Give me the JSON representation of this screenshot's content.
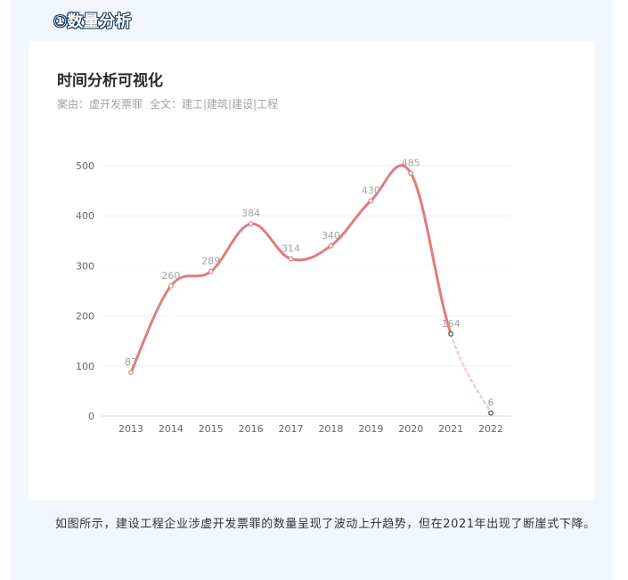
{
  "section_heading": "①数量分析",
  "card": {
    "title": "时间分析可视化",
    "subtitle_case": "案由：虚开发票罪",
    "subtitle_fulltext": "全文：建工|建筑|建设|工程"
  },
  "caption": "如图所示，建设工程企业涉虚开发票罪的数量呈现了波动上升趋势，但在2021年出现了断崖式下降。",
  "colors": {
    "line": "#e07c7e",
    "line_faded": "#f3cfd0",
    "panel_bg": "#f1f7fd",
    "axis_text": "#666666",
    "label_text": "#a3a3a3"
  },
  "chart_data": {
    "type": "line",
    "title": "时间分析可视化",
    "xlabel": "",
    "ylabel": "",
    "categories": [
      "2013",
      "2014",
      "2015",
      "2016",
      "2017",
      "2018",
      "2019",
      "2020",
      "2021",
      "2022"
    ],
    "series": [
      {
        "values": [
          87,
          260,
          289,
          384,
          314,
          340,
          430,
          485,
          164,
          6
        ]
      }
    ],
    "data_labels": [
      "87",
      "260",
      "289",
      "384",
      "314",
      "340",
      "430",
      "485",
      "164",
      "6"
    ],
    "yticks": [
      0,
      100,
      200,
      300,
      400,
      500
    ],
    "ylim": [
      0,
      500
    ],
    "grid": true,
    "smooth": true,
    "dashed_last_segment": true,
    "legend": "none"
  }
}
